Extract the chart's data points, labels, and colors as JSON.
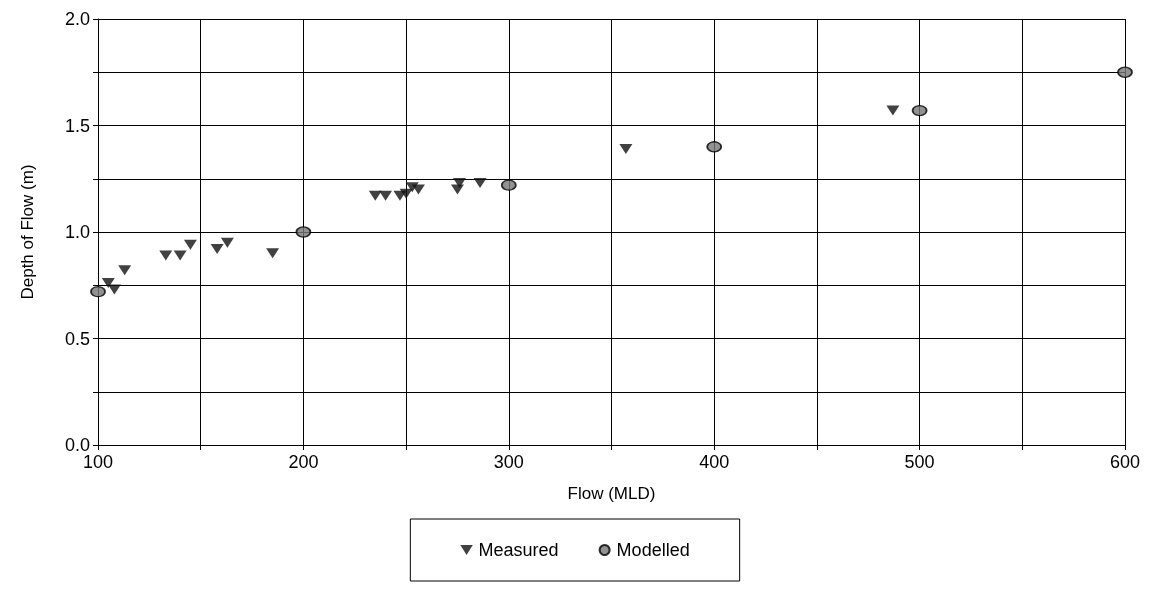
{
  "chart_data": {
    "type": "scatter",
    "xlabel": "Flow (MLD)",
    "ylabel": "Depth of Flow (m)",
    "xlim": [
      100,
      600
    ],
    "xticks": [
      100,
      {
        "value": 150,
        "label": null
      },
      200,
      {
        "value": 250,
        "label": null
      },
      300,
      {
        "value": 350,
        "label": null
      },
      400,
      {
        "value": 450,
        "label": null
      },
      500,
      {
        "value": 550,
        "label": null
      },
      600
    ],
    "ylim": [
      0,
      2
    ],
    "yticks": [
      "0.0",
      {
        "value": 0.25,
        "label": null
      },
      0.5,
      {
        "value": 0.75,
        "label": null
      },
      "1.0",
      {
        "value": 1.25,
        "label": null
      },
      1.5,
      {
        "value": 1.75,
        "label": null
      },
      "2.0"
    ],
    "grid": true,
    "legend": "bottom",
    "series": [
      {
        "name": "Measured",
        "color": "#111111",
        "marker": "triangle-down",
        "x": [
          105,
          108,
          113,
          133,
          140,
          145,
          158,
          163,
          185,
          235,
          240,
          247,
          250,
          253,
          256,
          275,
          276,
          286,
          357,
          487
        ],
        "values": [
          0.76,
          0.73,
          0.82,
          0.89,
          0.89,
          0.94,
          0.92,
          0.95,
          0.9,
          1.17,
          1.17,
          1.17,
          1.18,
          1.21,
          1.2,
          1.2,
          1.23,
          1.23,
          1.39,
          1.57
        ]
      },
      {
        "name": "Modelled",
        "color": "#777777",
        "marker": "circle",
        "x": [
          100,
          200,
          300,
          400,
          500,
          600
        ],
        "values": [
          0.72,
          1.0,
          1.22,
          1.4,
          1.57,
          1.75
        ]
      }
    ]
  }
}
